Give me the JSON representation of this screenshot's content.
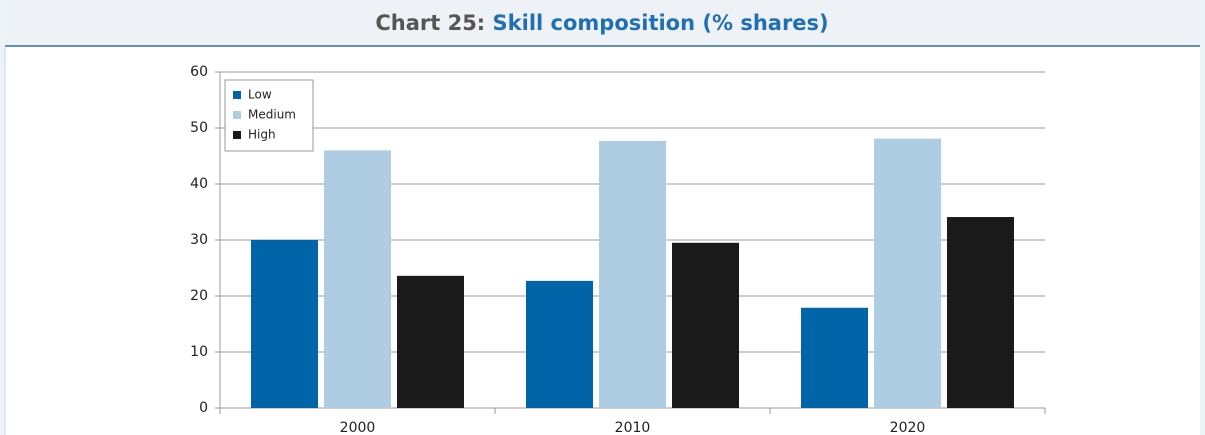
{
  "chart_data": {
    "type": "bar",
    "title_label": "Chart 25:",
    "title": "Skill composition (% shares)",
    "categories": [
      "2000",
      "2010",
      "2020"
    ],
    "series": [
      {
        "name": "Low",
        "color": "#0065a8",
        "values": [
          30,
          22.7,
          17.9
        ]
      },
      {
        "name": "Medium",
        "color": "#aecde3",
        "values": [
          46,
          47.7,
          48.1
        ]
      },
      {
        "name": "High",
        "color": "#1a1a1a",
        "values": [
          23.6,
          29.5,
          34.1
        ]
      }
    ],
    "ylim": [
      0,
      60
    ],
    "yticks": [
      0,
      10,
      20,
      30,
      40,
      50,
      60
    ],
    "grid": true,
    "legend": "top-left"
  }
}
